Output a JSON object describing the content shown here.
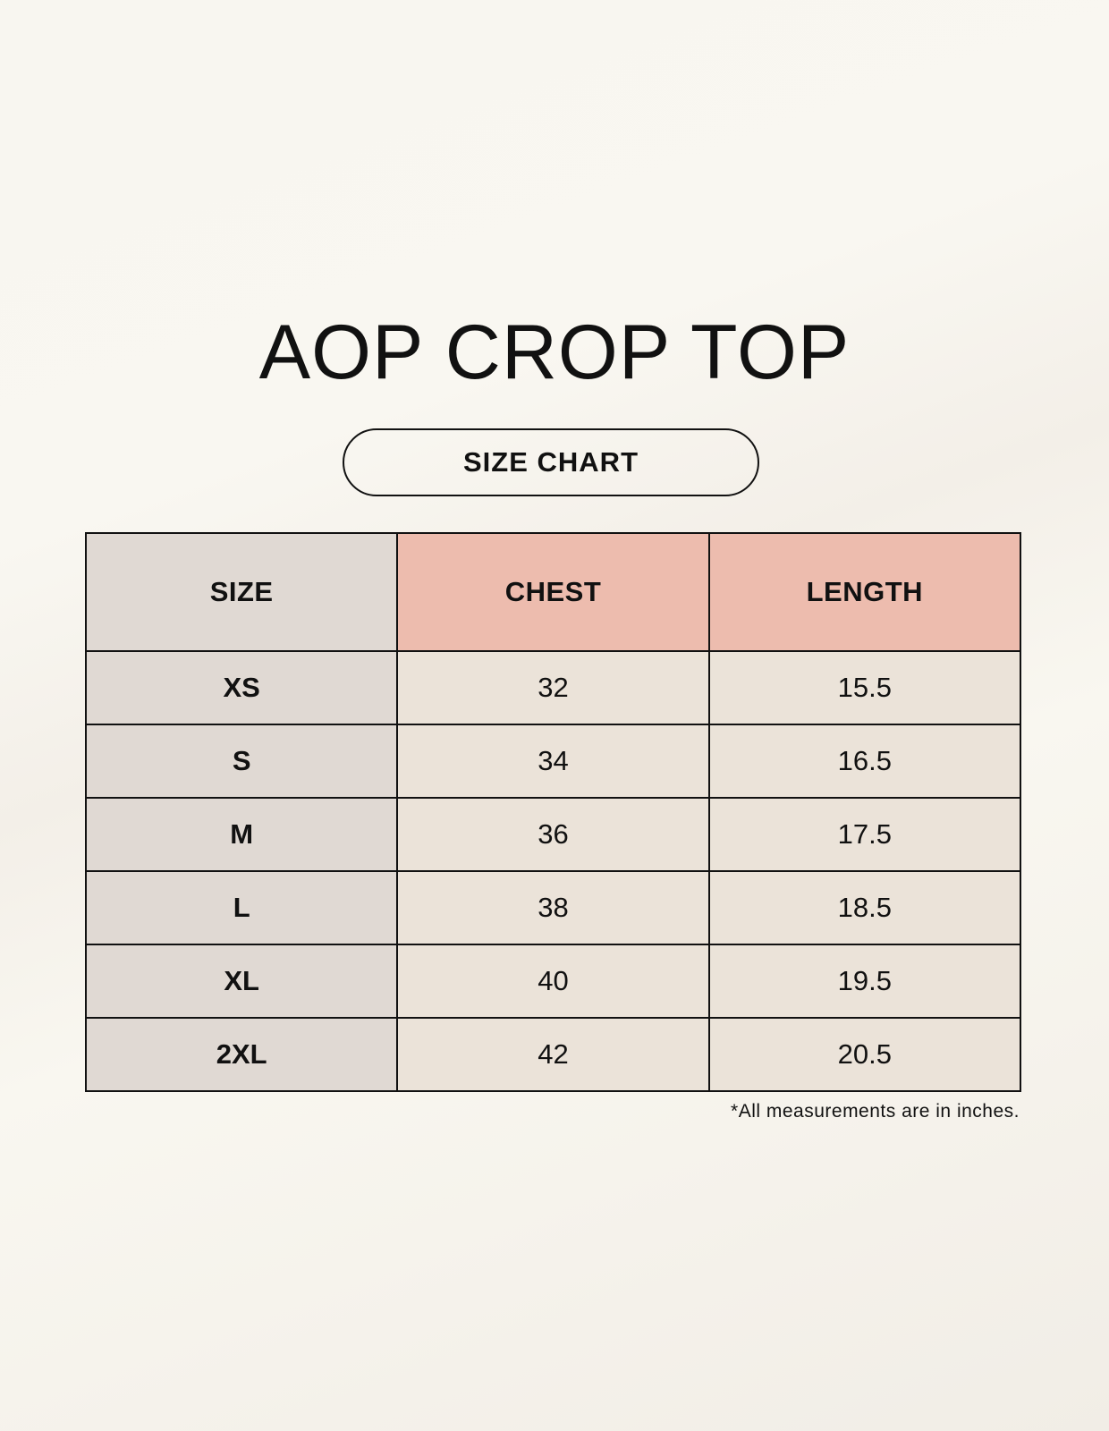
{
  "title": "AOP CROP TOP",
  "subtitle": "SIZE CHART",
  "table": {
    "headers": [
      "SIZE",
      "CHEST",
      "LENGTH"
    ],
    "rows": [
      [
        "XS",
        "32",
        "15.5"
      ],
      [
        "S",
        "34",
        "16.5"
      ],
      [
        "M",
        "36",
        "17.5"
      ],
      [
        "L",
        "38",
        "18.5"
      ],
      [
        "XL",
        "40",
        "19.5"
      ],
      [
        "2XL",
        "42",
        "20.5"
      ]
    ]
  },
  "footnote": "*All measurements are in inches.",
  "colors": {
    "header_accent": "#edbcae",
    "size_column": "#e0d9d3",
    "cell": "#ebe3d9"
  }
}
